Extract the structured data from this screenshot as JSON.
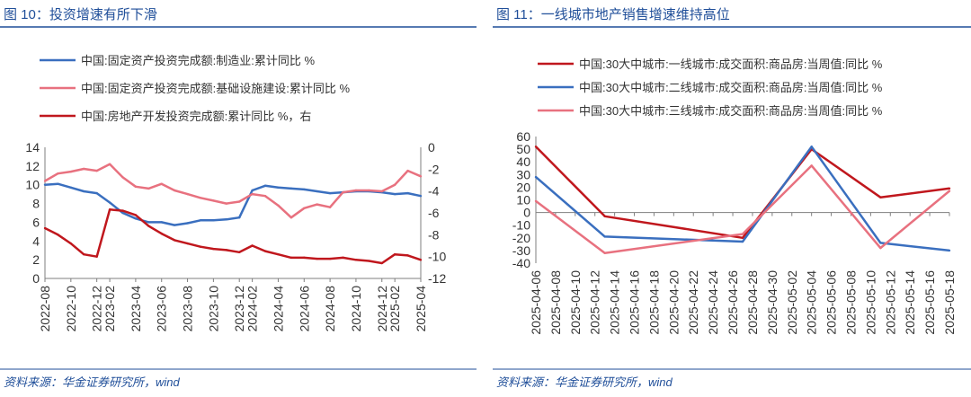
{
  "source_text": "资料来源：华金证券研究所，wind",
  "chart_data": [
    {
      "type": "line",
      "title": "图 10：投资增速有所下滑",
      "x": [
        "2022-08",
        "2022-09",
        "2022-10",
        "2022-11",
        "2022-12",
        "2023-02",
        "2023-03",
        "2023-04",
        "2023-05",
        "2023-06",
        "2023-07",
        "2023-08",
        "2023-09",
        "2023-10",
        "2023-11",
        "2023-12",
        "2024-02",
        "2024-03",
        "2024-04",
        "2024-05",
        "2024-06",
        "2024-07",
        "2024-08",
        "2024-09",
        "2024-10",
        "2024-11",
        "2024-12",
        "2025-02",
        "2025-03",
        "2025-04"
      ],
      "x_tick_labels": [
        "2022-08",
        "2022-10",
        "2022-12",
        "2023-02",
        "2023-04",
        "2023-06",
        "2023-08",
        "2023-10",
        "2023-12",
        "2024-02",
        "2024-04",
        "2024-06",
        "2024-08",
        "2024-10",
        "2024-12",
        "2025-02",
        "2025-04"
      ],
      "left_axis": {
        "ylim": [
          0,
          14
        ],
        "ticks": [
          0,
          2,
          4,
          6,
          8,
          10,
          12,
          14
        ]
      },
      "right_axis": {
        "ylim": [
          -12,
          0
        ],
        "ticks": [
          -12,
          -10,
          -8,
          -6,
          -4,
          -2,
          0
        ]
      },
      "series": [
        {
          "name": "中国:固定资产投资完成额:制造业:累计同比 %",
          "color": "#3a6fbf",
          "axis": "left",
          "values": [
            10.0,
            10.1,
            9.7,
            9.3,
            9.1,
            8.1,
            7.0,
            6.4,
            6.0,
            6.0,
            5.7,
            5.9,
            6.2,
            6.2,
            6.3,
            6.5,
            9.4,
            9.9,
            9.7,
            9.6,
            9.5,
            9.3,
            9.1,
            9.2,
            9.3,
            9.3,
            9.2,
            9.0,
            9.1,
            8.8
          ]
        },
        {
          "name": "中国:固定资产投资完成额:基础设施建设:累计同比 %",
          "color": "#e8717f",
          "axis": "left",
          "values": [
            10.4,
            11.2,
            11.4,
            11.7,
            11.5,
            12.2,
            10.8,
            9.8,
            9.6,
            10.1,
            9.4,
            9.0,
            8.6,
            8.3,
            8.0,
            8.2,
            9.0,
            8.8,
            7.8,
            6.5,
            7.5,
            7.9,
            7.6,
            9.2,
            9.4,
            9.4,
            9.3,
            10.0,
            11.5,
            10.9
          ]
        },
        {
          "name": "中国:房地产开发投资完成额:累计同比 %，右",
          "color": "#c0171d",
          "axis": "right",
          "values": [
            -7.4,
            -8.0,
            -8.8,
            -9.8,
            -10.0,
            -5.7,
            -5.8,
            -6.2,
            -7.2,
            -7.9,
            -8.5,
            -8.8,
            -9.1,
            -9.3,
            -9.4,
            -9.6,
            -9.0,
            -9.5,
            -9.8,
            -10.1,
            -10.1,
            -10.2,
            -10.2,
            -10.1,
            -10.3,
            -10.4,
            -10.6,
            -9.8,
            -9.9,
            -10.3
          ]
        }
      ]
    },
    {
      "type": "line",
      "title": "图 11：一线城市地产销售增速维持高位",
      "x": [
        "2025-04-06",
        "2025-04-08",
        "2025-04-10",
        "2025-04-12",
        "2025-04-14",
        "2025-04-16",
        "2025-04-18",
        "2025-04-20",
        "2025-04-22",
        "2025-04-24",
        "2025-04-26",
        "2025-04-28",
        "2025-04-30",
        "2025-05-02",
        "2025-05-04",
        "2025-05-06",
        "2025-05-08",
        "2025-05-10",
        "2025-05-12",
        "2025-05-14",
        "2025-05-16",
        "2025-05-18"
      ],
      "ylim": [
        -40,
        60
      ],
      "ticks": [
        -40,
        -30,
        -20,
        -10,
        0,
        10,
        20,
        30,
        40,
        50,
        60
      ],
      "series": [
        {
          "name": "中国:30大中城市:一线城市:成交面积:商品房:当周值:同比 %",
          "color": "#c0171d",
          "points": [
            [
              "2025-04-06",
              52
            ],
            [
              "2025-04-13",
              -3
            ],
            [
              "2025-04-27",
              -20
            ],
            [
              "2025-05-04",
              50
            ],
            [
              "2025-05-11",
              12
            ],
            [
              "2025-05-18",
              19
            ]
          ]
        },
        {
          "name": "中国:30大中城市:二线城市:成交面积:商品房:当周值:同比 %",
          "color": "#3a6fbf",
          "points": [
            [
              "2025-04-06",
              28
            ],
            [
              "2025-04-13",
              -19
            ],
            [
              "2025-04-27",
              -23
            ],
            [
              "2025-05-04",
              52
            ],
            [
              "2025-05-11",
              -24
            ],
            [
              "2025-05-18",
              -30
            ]
          ]
        },
        {
          "name": "中国:30大中城市:三线城市:成交面积:商品房:当周值:同比 %",
          "color": "#e8717f",
          "points": [
            [
              "2025-04-06",
              9
            ],
            [
              "2025-04-13",
              -32
            ],
            [
              "2025-04-27",
              -17
            ],
            [
              "2025-05-04",
              37
            ],
            [
              "2025-05-11",
              -28
            ],
            [
              "2025-05-18",
              17
            ]
          ]
        }
      ]
    }
  ]
}
